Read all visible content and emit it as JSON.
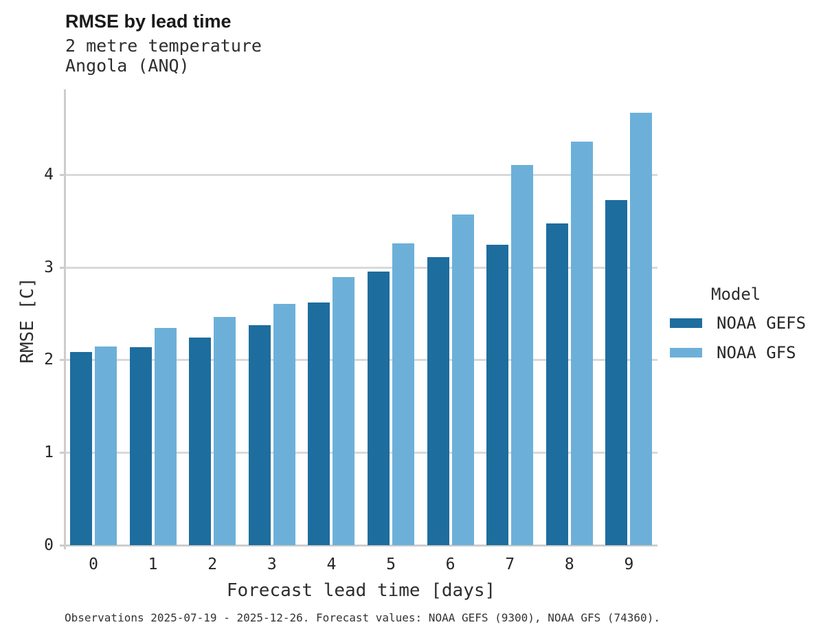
{
  "header": {
    "title": "RMSE by lead time",
    "subtitle_line1": "2 metre temperature",
    "subtitle_line2": "Angola (ANQ)"
  },
  "legend": {
    "title": "Model",
    "items": [
      {
        "label": "NOAA GEFS",
        "color": "#1d6d9e"
      },
      {
        "label": "NOAA GFS",
        "color": "#6cb0d9"
      }
    ]
  },
  "footer": {
    "caption": "Observations 2025-07-19 - 2025-12-26. Forecast values: NOAA GEFS (9300), NOAA GFS (74360)."
  },
  "chart_data": {
    "type": "bar",
    "title": "RMSE by lead time",
    "subtitle": [
      "2 metre temperature",
      "Angola (ANQ)"
    ],
    "xlabel": "Forecast lead time [days]",
    "ylabel": "RMSE [C]",
    "categories": [
      "0",
      "1",
      "2",
      "3",
      "4",
      "5",
      "6",
      "7",
      "8",
      "9"
    ],
    "series": [
      {
        "name": "NOAA GEFS",
        "color": "#1d6d9e",
        "values": [
          2.09,
          2.14,
          2.24,
          2.38,
          2.62,
          2.96,
          3.11,
          3.25,
          3.48,
          3.73
        ]
      },
      {
        "name": "NOAA GFS",
        "color": "#6cb0d9",
        "values": [
          2.15,
          2.35,
          2.47,
          2.61,
          2.9,
          3.26,
          3.57,
          4.11,
          4.36,
          4.67
        ]
      }
    ],
    "ylim": [
      0,
      4.93
    ],
    "yticks": [
      0,
      1,
      2,
      3,
      4
    ],
    "grid": true,
    "grid_color": "#d9d9d9",
    "legend_position": "right",
    "legend_title": "Model"
  }
}
